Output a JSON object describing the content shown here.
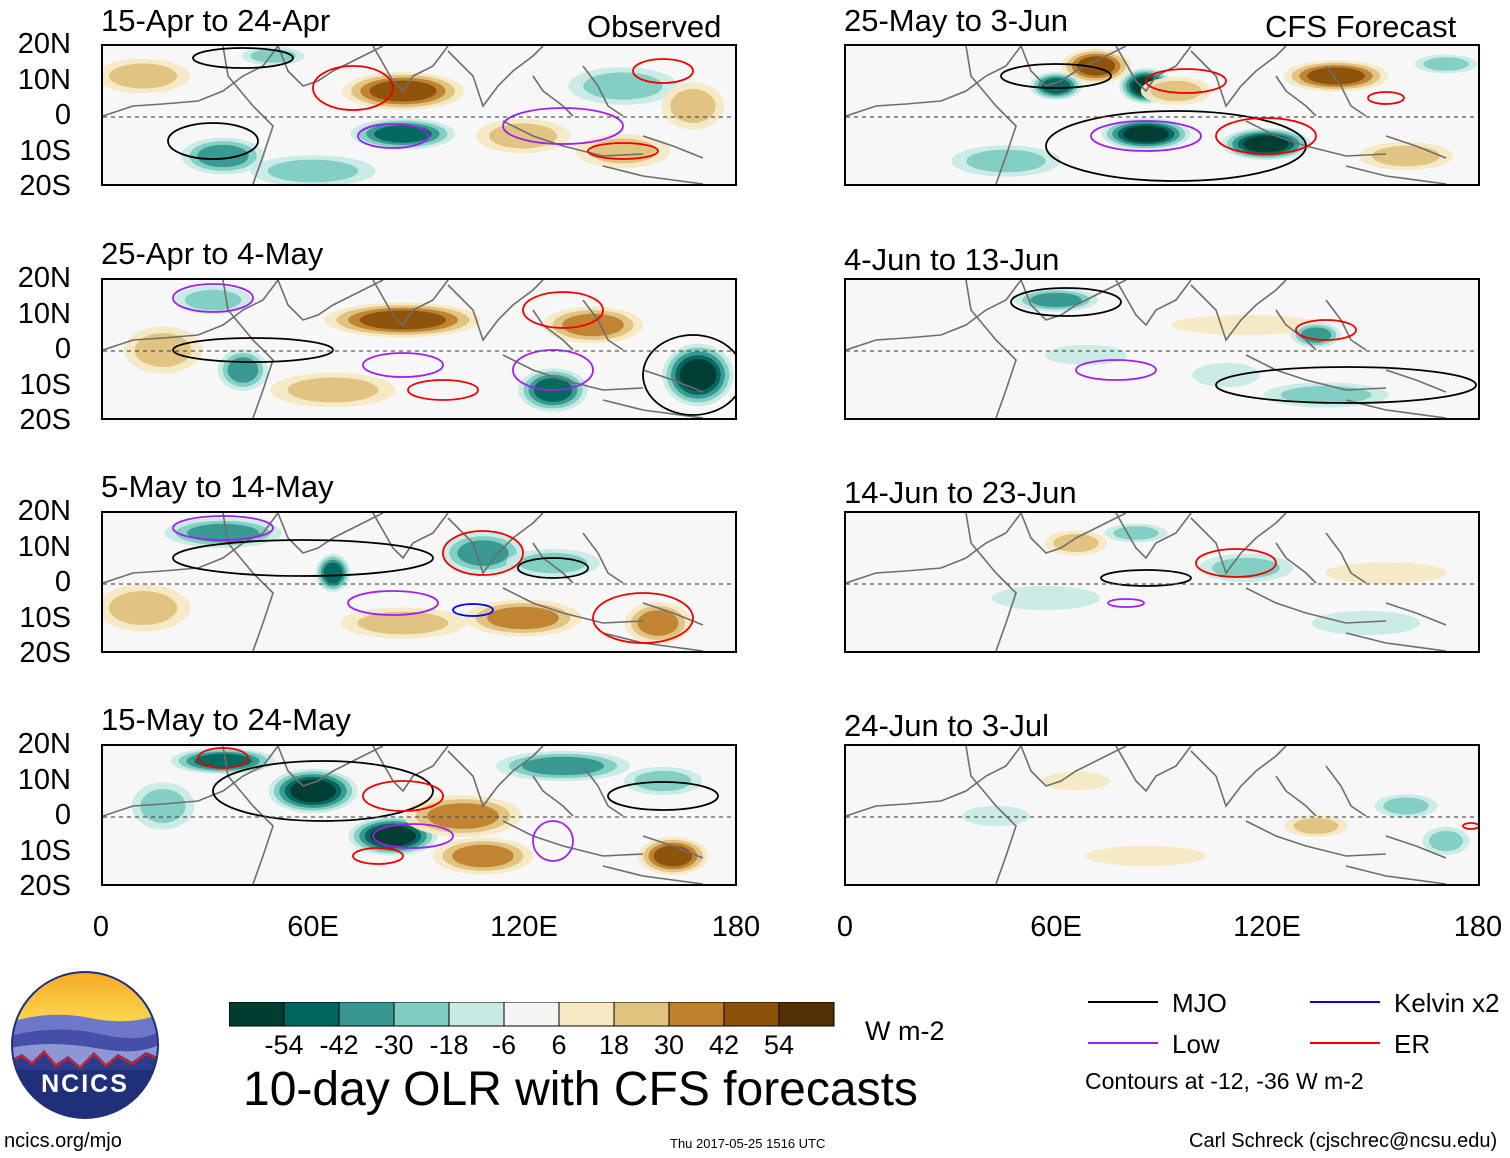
{
  "header": {
    "left_label": "Observed",
    "right_label": "CFS Forecast"
  },
  "panels": [
    {
      "id": "p1",
      "title": "15-Apr to 24-Apr"
    },
    {
      "id": "p2",
      "title": "25-Apr to 4-May"
    },
    {
      "id": "p3",
      "title": "5-May to 14-May"
    },
    {
      "id": "p4",
      "title": "15-May to 24-May"
    },
    {
      "id": "p5",
      "title": "25-May to 3-Jun"
    },
    {
      "id": "p6",
      "title": "4-Jun to 13-Jun"
    },
    {
      "id": "p7",
      "title": "14-Jun to 23-Jun"
    },
    {
      "id": "p8",
      "title": "24-Jun to 3-Jul"
    }
  ],
  "lat_labels": [
    "20N",
    "10N",
    "0",
    "10S",
    "20S"
  ],
  "lon_labels": [
    "0",
    "60E",
    "120E",
    "180"
  ],
  "colorbar": {
    "colors": [
      "#003c30",
      "#01665e",
      "#35978f",
      "#80cdc1",
      "#c7eae5",
      "#f5f5f5",
      "#f6e8c3",
      "#dfc27d",
      "#bf812d",
      "#8c510a",
      "#543005"
    ],
    "labels": [
      "-54",
      "-42",
      "-30",
      "-18",
      "-6",
      "6",
      "18",
      "30",
      "42",
      "54"
    ],
    "units": "W m-2"
  },
  "main_title": "10-day OLR with CFS forecasts",
  "legend": {
    "items": [
      {
        "label": "MJO",
        "color": "#000000"
      },
      {
        "label": "Low",
        "color": "#a020f0"
      },
      {
        "label": "Kelvin x2",
        "color": "#0000ff"
      },
      {
        "label": "ER",
        "color": "#ee0000"
      }
    ],
    "note": "Contours at -12, -36 W m-2"
  },
  "logo": {
    "text": "NCICS"
  },
  "footer": {
    "url": "ncics.org/mjo",
    "timestamp": "Thu 2017-05-25 1516 UTC",
    "credit": "Carl Schreck (cjschrec@ncsu.edu)"
  }
}
